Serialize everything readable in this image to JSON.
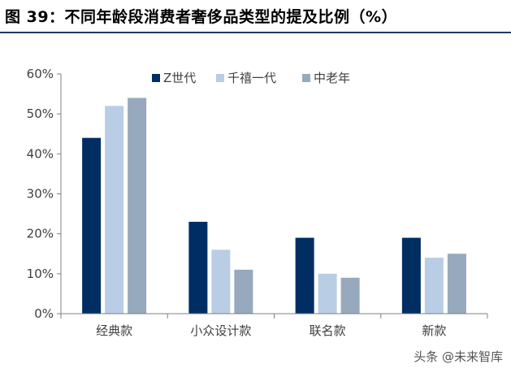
{
  "figure": {
    "title": "图 39：不同年龄段消费者奢侈品类型的提及比例（%）",
    "watermark": "头条 @未来智库"
  },
  "colors": {
    "header_rule": "#1f3864",
    "axis": "#808080"
  },
  "chart_data": {
    "type": "bar",
    "title": "",
    "xlabel": "",
    "ylabel": "",
    "categories": [
      "经典款",
      "小众设计款",
      "联名款",
      "新款"
    ],
    "series": [
      {
        "name": "Z世代",
        "color": "#002e63",
        "values": [
          44,
          23,
          19,
          19
        ]
      },
      {
        "name": "千禧一代",
        "color": "#b9cde5",
        "values": [
          52,
          16,
          10,
          14
        ]
      },
      {
        "name": "中老年",
        "color": "#97a9bc",
        "values": [
          54,
          11,
          9,
          15
        ]
      }
    ],
    "ylim": [
      0,
      60
    ],
    "yticks": [
      0,
      10,
      20,
      30,
      40,
      50,
      60
    ],
    "ytick_format": "percent",
    "grid": false,
    "legend_position": "top-right"
  }
}
